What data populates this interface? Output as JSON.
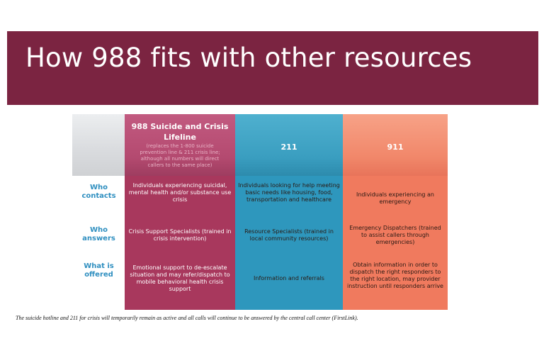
{
  "title": "How 988 fits with other resources",
  "columns": {
    "c988": {
      "title": "988 Suicide and Crisis Lifeline",
      "subtitle": "(replaces the 1-800 suicide prevention line & 211 crisis line; although all numbers will direct callers to the same place)"
    },
    "c211": {
      "title": "211"
    },
    "c911": {
      "title": "911"
    }
  },
  "rows": {
    "who_contacts": {
      "label": "Who contacts",
      "c988": "Individuals experiencing suicidal, mental health and/or substance use crisis",
      "c211": "Individuals looking for help meeting basic needs like housing, food, transportation and healthcare",
      "c911": "Individuals experiencing an emergency"
    },
    "who_answers": {
      "label": "Who answers",
      "c988": "Crisis Support Specialists (trained in crisis intervention)",
      "c211": "Resource Specialists (trained in local community resources)",
      "c911": "Emergency Dispatchers (trained to assist callers through emergencies)"
    },
    "what_offered": {
      "label": "What is offered",
      "c988": "Emotional support to de-escalate situation and may refer/dispatch to mobile behavioral health crisis support",
      "c211": "Information and referrals",
      "c911": "Obtain information in order to dispatch the right responders to the right location, may provider instruction until responders arrive"
    }
  },
  "footnote": "The suicide hotline and 211 for crisis will temporarily remain as active and all calls will continue to be answered by the central call center (FirstLink).",
  "colors": {
    "banner": "#7b2441",
    "col988": "#a8385d",
    "col211": "#2e97bd",
    "col911": "#f07a5e",
    "row_label": "#2f8fc0"
  }
}
